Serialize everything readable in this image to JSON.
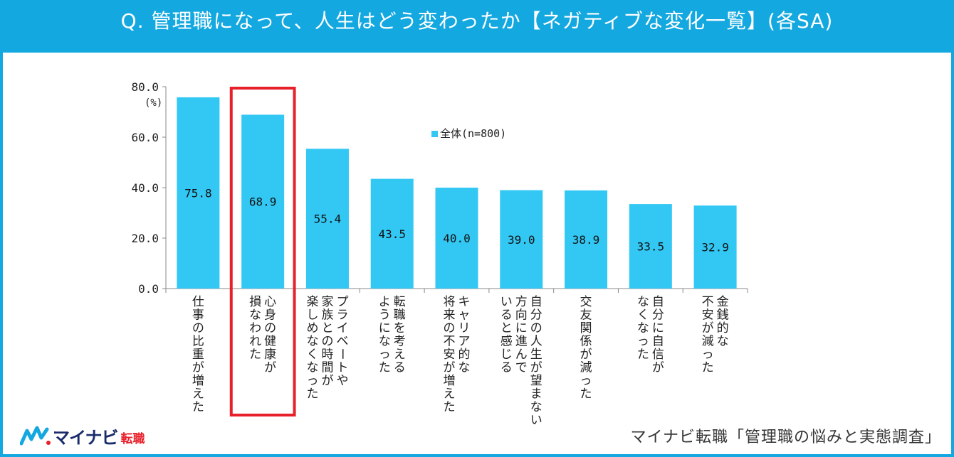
{
  "header": {
    "title": "Q. 管理職になって、人生はどう変わったか【ネガティブな変化一覧】(各SA)"
  },
  "chart_data": {
    "type": "bar",
    "title": "",
    "unit_label": "(%)",
    "ylim": [
      0,
      80
    ],
    "y_ticks": [
      "0.0",
      "20.0",
      "40.0",
      "60.0",
      "80.0"
    ],
    "grid": false,
    "legend_position": "top-center",
    "series": [
      {
        "name": "全体(n=800)",
        "values": [
          75.8,
          68.9,
          55.4,
          43.5,
          40.0,
          39.0,
          38.9,
          33.5,
          32.9
        ]
      }
    ],
    "value_labels": [
      "75.8",
      "68.9",
      "55.4",
      "43.5",
      "40.0",
      "39.0",
      "38.9",
      "33.5",
      "32.9"
    ],
    "categories": [
      "仕事の比重が増えた",
      "心身の健康が損なわれた",
      "プライベートや家族との時間が楽しめなくなった",
      "転職を考えるようになった",
      "キャリア的な将来の不安が増えた",
      "自分の人生が望まない方向に進んでいると感じる",
      "交友関係が減った",
      "自分に自信がなくなった",
      "金銭的な不安が減った"
    ],
    "category_label_columns": [
      [
        "仕事の比重が増えた"
      ],
      [
        "心身の健康が",
        "損なわれた"
      ],
      [
        "プライベートや",
        "家族との時間が",
        "楽しめなくなった"
      ],
      [
        "転職を考える",
        "ようになった"
      ],
      [
        "キャリア的な",
        "将来の不安が増えた"
      ],
      [
        "自分の人生が望まない",
        "方向に進んで",
        "いると感じる"
      ],
      [
        "交友関係が減った"
      ],
      [
        "自分に自信が",
        "なくなった"
      ],
      [
        "金銭的な",
        "不安が減った"
      ]
    ],
    "highlighted_category": "心身の健康が損なわれた"
  },
  "colors": {
    "header_bg": "#14a8e0",
    "bar": "#33c8f4",
    "highlight_box": "#e8202a",
    "axis": "#888888"
  },
  "footer": {
    "logo_text": "マイナビ",
    "logo_sub": "転職",
    "source": "マイナビ転職「管理職の悩みと実態調査」"
  }
}
